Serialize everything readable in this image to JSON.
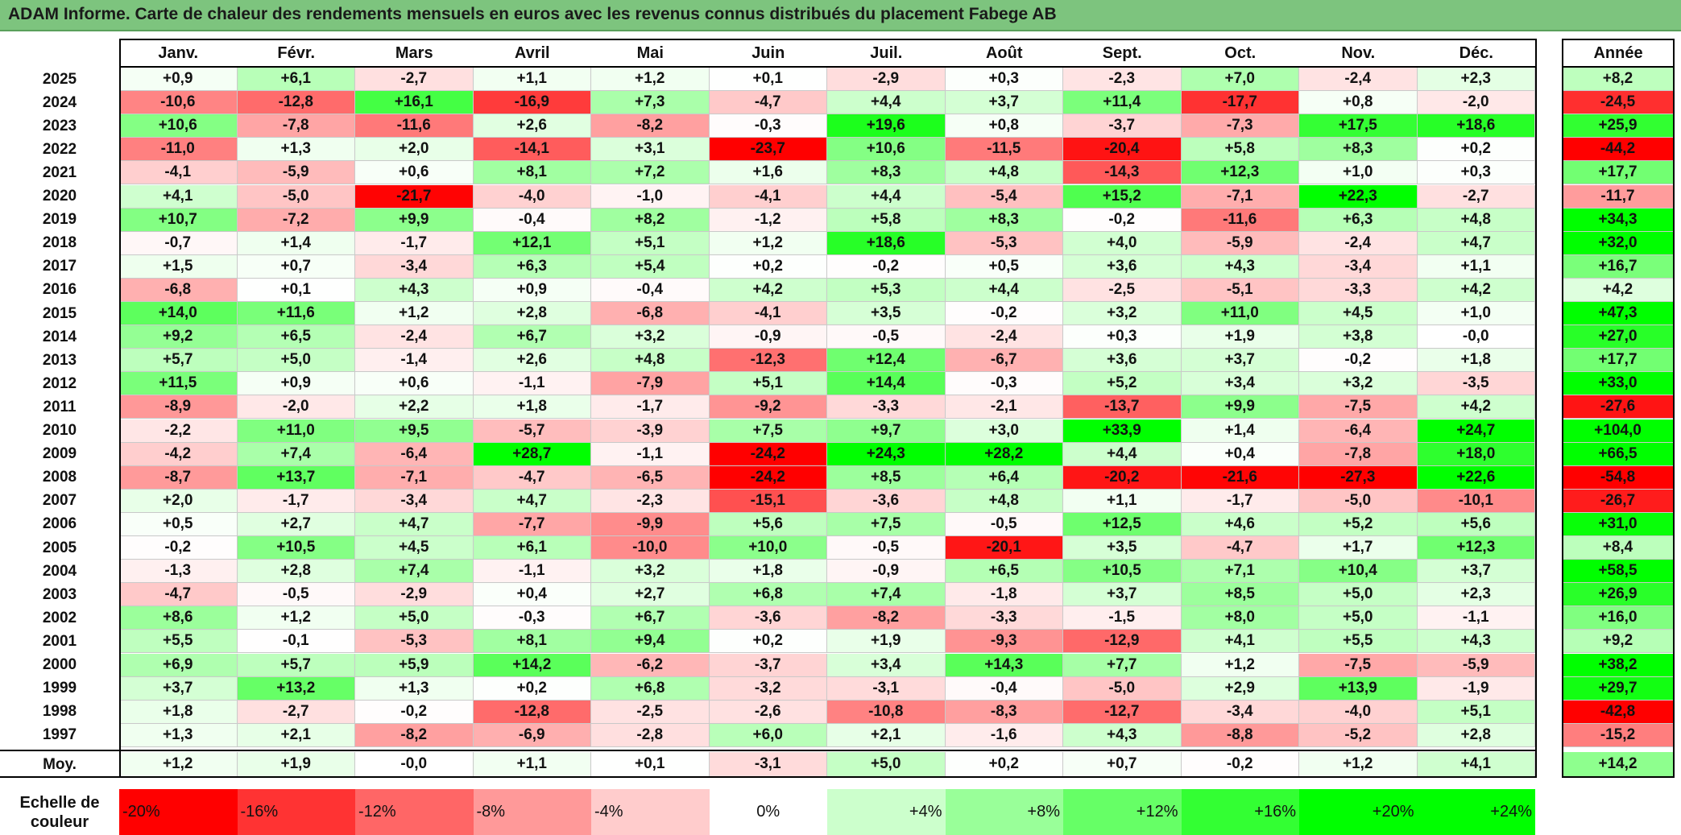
{
  "title": "ADAM Informe. Carte de chaleur des rendements mensuels en euros avec les revenus connus distribués du placement Fabege AB",
  "chart_data": {
    "type": "heatmap",
    "title": "ADAM Informe. Carte de chaleur des rendements mensuels en euros avec les revenus connus distribués du placement Fabege AB",
    "months": [
      "Janv.",
      "Févr.",
      "Mars",
      "Avril",
      "Mai",
      "Juin",
      "Juil.",
      "Août",
      "Sept.",
      "Oct.",
      "Nov.",
      "Déc."
    ],
    "year_header": "Année",
    "rows": [
      {
        "year": "2025",
        "values": [
          "+0,9",
          "+6,1",
          "-2,7",
          "+1,1",
          "+1,2",
          "+0,1",
          "-2,9",
          "+0,3",
          "-2,3",
          "+7,0",
          "-2,4",
          "+2,3"
        ],
        "annual": "+8,2"
      },
      {
        "year": "2024",
        "values": [
          "-10,6",
          "-12,8",
          "+16,1",
          "-16,9",
          "+7,3",
          "-4,7",
          "+4,4",
          "+3,7",
          "+11,4",
          "-17,7",
          "+0,8",
          "-2,0"
        ],
        "annual": "-24,5"
      },
      {
        "year": "2023",
        "values": [
          "+10,6",
          "-7,8",
          "-11,6",
          "+2,6",
          "-8,2",
          "-0,3",
          "+19,6",
          "+0,8",
          "-3,7",
          "-7,3",
          "+17,5",
          "+18,6"
        ],
        "annual": "+25,9"
      },
      {
        "year": "2022",
        "values": [
          "-11,0",
          "+1,3",
          "+2,0",
          "-14,1",
          "+3,1",
          "-23,7",
          "+10,6",
          "-11,5",
          "-20,4",
          "+5,8",
          "+8,3",
          "+0,2"
        ],
        "annual": "-44,2"
      },
      {
        "year": "2021",
        "values": [
          "-4,1",
          "-5,9",
          "+0,6",
          "+8,1",
          "+7,2",
          "+1,6",
          "+8,3",
          "+4,8",
          "-14,3",
          "+12,3",
          "+1,0",
          "+0,3"
        ],
        "annual": "+17,7"
      },
      {
        "year": "2020",
        "values": [
          "+4,1",
          "-5,0",
          "-21,7",
          "-4,0",
          "-1,0",
          "-4,1",
          "+4,4",
          "-5,4",
          "+15,2",
          "-7,1",
          "+22,3",
          "-2,7"
        ],
        "annual": "-11,7"
      },
      {
        "year": "2019",
        "values": [
          "+10,7",
          "-7,2",
          "+9,9",
          "-0,4",
          "+8,2",
          "-1,2",
          "+5,8",
          "+8,3",
          "-0,2",
          "-11,6",
          "+6,3",
          "+4,8"
        ],
        "annual": "+34,3"
      },
      {
        "year": "2018",
        "values": [
          "-0,7",
          "+1,4",
          "-1,7",
          "+12,1",
          "+5,1",
          "+1,2",
          "+18,6",
          "-5,3",
          "+4,0",
          "-5,9",
          "-2,4",
          "+4,7"
        ],
        "annual": "+32,0"
      },
      {
        "year": "2017",
        "values": [
          "+1,5",
          "+0,7",
          "-3,4",
          "+6,3",
          "+5,4",
          "+0,2",
          "-0,2",
          "+0,5",
          "+3,6",
          "+4,3",
          "-3,4",
          "+1,1"
        ],
        "annual": "+16,7"
      },
      {
        "year": "2016",
        "values": [
          "-6,8",
          "+0,1",
          "+4,3",
          "+0,9",
          "-0,4",
          "+4,2",
          "+5,3",
          "+4,4",
          "-2,5",
          "-5,1",
          "-3,3",
          "+4,2"
        ],
        "annual": "+4,2"
      },
      {
        "year": "2015",
        "values": [
          "+14,0",
          "+11,6",
          "+1,2",
          "+2,8",
          "-6,8",
          "-4,1",
          "+3,5",
          "-0,2",
          "+3,2",
          "+11,0",
          "+4,5",
          "+1,0"
        ],
        "annual": "+47,3"
      },
      {
        "year": "2014",
        "values": [
          "+9,2",
          "+6,5",
          "-2,4",
          "+6,7",
          "+3,2",
          "-0,9",
          "-0,5",
          "-2,4",
          "+0,3",
          "+1,9",
          "+3,8",
          "-0,0"
        ],
        "annual": "+27,0"
      },
      {
        "year": "2013",
        "values": [
          "+5,7",
          "+5,0",
          "-1,4",
          "+2,6",
          "+4,8",
          "-12,3",
          "+12,4",
          "-6,7",
          "+3,6",
          "+3,7",
          "-0,2",
          "+1,8"
        ],
        "annual": "+17,7"
      },
      {
        "year": "2012",
        "values": [
          "+11,5",
          "+0,9",
          "+0,6",
          "-1,1",
          "-7,9",
          "+5,1",
          "+14,4",
          "-0,3",
          "+5,2",
          "+3,4",
          "+3,2",
          "-3,5"
        ],
        "annual": "+33,0"
      },
      {
        "year": "2011",
        "values": [
          "-8,9",
          "-2,0",
          "+2,2",
          "+1,8",
          "-1,7",
          "-9,2",
          "-3,3",
          "-2,1",
          "-13,7",
          "+9,9",
          "-7,5",
          "+4,2"
        ],
        "annual": "-27,6"
      },
      {
        "year": "2010",
        "values": [
          "-2,2",
          "+11,0",
          "+9,5",
          "-5,7",
          "-3,9",
          "+7,5",
          "+9,7",
          "+3,0",
          "+33,9",
          "+1,4",
          "-6,4",
          "+24,7"
        ],
        "annual": "+104,0"
      },
      {
        "year": "2009",
        "values": [
          "-4,2",
          "+7,4",
          "-6,4",
          "+28,7",
          "-1,1",
          "-24,2",
          "+24,3",
          "+28,2",
          "+4,4",
          "+0,4",
          "-7,8",
          "+18,0"
        ],
        "annual": "+66,5"
      },
      {
        "year": "2008",
        "values": [
          "-8,7",
          "+13,7",
          "-7,1",
          "-4,7",
          "-6,5",
          "-24,2",
          "+8,5",
          "+6,4",
          "-20,2",
          "-21,6",
          "-27,3",
          "+22,6"
        ],
        "annual": "-54,8"
      },
      {
        "year": "2007",
        "values": [
          "+2,0",
          "-1,7",
          "-3,4",
          "+4,7",
          "-2,3",
          "-15,1",
          "-3,6",
          "+4,8",
          "+1,1",
          "-1,7",
          "-5,0",
          "-10,1"
        ],
        "annual": "-26,7"
      },
      {
        "year": "2006",
        "values": [
          "+0,5",
          "+2,7",
          "+4,7",
          "-7,7",
          "-9,9",
          "+5,6",
          "+7,5",
          "-0,5",
          "+12,5",
          "+4,6",
          "+5,2",
          "+5,6"
        ],
        "annual": "+31,0"
      },
      {
        "year": "2005",
        "values": [
          "-0,2",
          "+10,5",
          "+4,5",
          "+6,1",
          "-10,0",
          "+10,0",
          "-0,5",
          "-20,1",
          "+3,5",
          "-4,7",
          "+1,7",
          "+12,3"
        ],
        "annual": "+8,4"
      },
      {
        "year": "2004",
        "values": [
          "-1,3",
          "+2,8",
          "+7,4",
          "-1,1",
          "+3,2",
          "+1,8",
          "-0,9",
          "+6,5",
          "+10,5",
          "+7,1",
          "+10,4",
          "+3,7"
        ],
        "annual": "+58,5"
      },
      {
        "year": "2003",
        "values": [
          "-4,7",
          "-0,5",
          "-2,9",
          "+0,4",
          "+2,7",
          "+6,8",
          "+7,4",
          "-1,8",
          "+3,7",
          "+8,5",
          "+5,0",
          "+2,3"
        ],
        "annual": "+26,9"
      },
      {
        "year": "2002",
        "values": [
          "+8,6",
          "+1,2",
          "+5,0",
          "-0,3",
          "+6,7",
          "-3,6",
          "-8,2",
          "-3,3",
          "-1,5",
          "+8,0",
          "+5,0",
          "-1,1"
        ],
        "annual": "+16,0"
      },
      {
        "year": "2001",
        "values": [
          "+5,5",
          "-0,1",
          "-5,3",
          "+8,1",
          "+9,4",
          "+0,2",
          "+1,9",
          "-9,3",
          "-12,9",
          "+4,1",
          "+5,5",
          "+4,3"
        ],
        "annual": "+9,2"
      },
      {
        "year": "2000",
        "values": [
          "+6,9",
          "+5,7",
          "+5,9",
          "+14,2",
          "-6,2",
          "-3,7",
          "+3,4",
          "+14,3",
          "+7,7",
          "+1,2",
          "-7,5",
          "-5,9"
        ],
        "annual": "+38,2"
      },
      {
        "year": "1999",
        "values": [
          "+3,7",
          "+13,2",
          "+1,3",
          "+0,2",
          "+6,8",
          "-3,2",
          "-3,1",
          "-0,4",
          "-5,0",
          "+2,9",
          "+13,9",
          "-1,9"
        ],
        "annual": "+29,7"
      },
      {
        "year": "1998",
        "values": [
          "+1,8",
          "-2,7",
          "-0,2",
          "-12,8",
          "-2,5",
          "-2,6",
          "-10,8",
          "-8,3",
          "-12,7",
          "-3,4",
          "-4,0",
          "+5,1"
        ],
        "annual": "-42,8"
      },
      {
        "year": "1997",
        "values": [
          "+1,3",
          "+2,1",
          "-8,2",
          "-6,9",
          "-2,8",
          "+6,0",
          "+2,1",
          "-1,6",
          "+4,3",
          "-8,8",
          "-5,2",
          "+2,8"
        ],
        "annual": "-15,2"
      }
    ],
    "average": {
      "label": "Moy.",
      "values": [
        "+1,2",
        "+1,9",
        "-0,0",
        "+1,1",
        "+0,1",
        "-3,1",
        "+5,0",
        "+0,2",
        "+0,7",
        "-0,2",
        "+1,2",
        "+4,1"
      ],
      "annual": "+14,2"
    },
    "scale": {
      "title_line1": "Echelle de",
      "title_line2": "couleur",
      "labels": [
        "-20%",
        "-16%",
        "-12%",
        "-8%",
        "-4%",
        "0%",
        "+4%",
        "+8%",
        "+12%",
        "+16%",
        "+20%",
        "+24%"
      ],
      "colors": [
        "#ff0000",
        "#ff3333",
        "#ff6666",
        "#ff9999",
        "#ffcccc",
        "#ffffff",
        "#ccffcc",
        "#99ff99",
        "#66ff66",
        "#33ff33",
        "#00ff00",
        "#00ff00"
      ]
    }
  }
}
